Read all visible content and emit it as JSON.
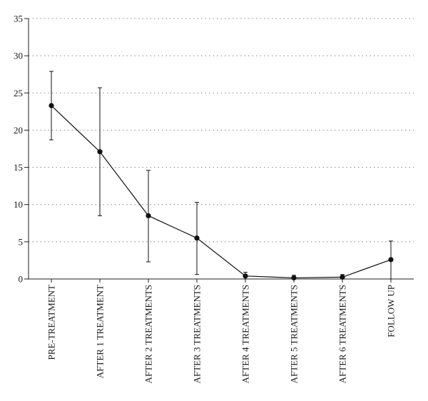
{
  "chart_data": {
    "type": "line",
    "title": "",
    "xlabel": "",
    "ylabel": "",
    "ylim": [
      0,
      35
    ],
    "yticks": [
      0,
      5,
      10,
      15,
      20,
      25,
      30,
      35
    ],
    "grid": "horizontal dotted",
    "categories": [
      "PRE-TREATMENT",
      "AFTER 1 TREATMENT",
      "AFTER 2 TREATMENTS",
      "AFTER 3 TREATMENTS",
      "AFTER 4 TREATMENTS",
      "AFTER 5 TREATMENTS",
      "AFTER 6 TREATMENTS",
      "FOLLOW UP"
    ],
    "series": [
      {
        "values": [
          23.3,
          17.1,
          8.5,
          5.5,
          0.4,
          0.15,
          0.25,
          2.6
        ],
        "error_low": [
          18.7,
          8.5,
          2.3,
          0.6,
          0.0,
          0.0,
          0.0,
          0.0
        ],
        "error_high": [
          27.9,
          25.7,
          14.6,
          10.3,
          0.9,
          0.5,
          0.6,
          5.1
        ]
      }
    ],
    "colors": {
      "line": "#111111",
      "grid": "#888888",
      "axis": "#222222"
    }
  }
}
